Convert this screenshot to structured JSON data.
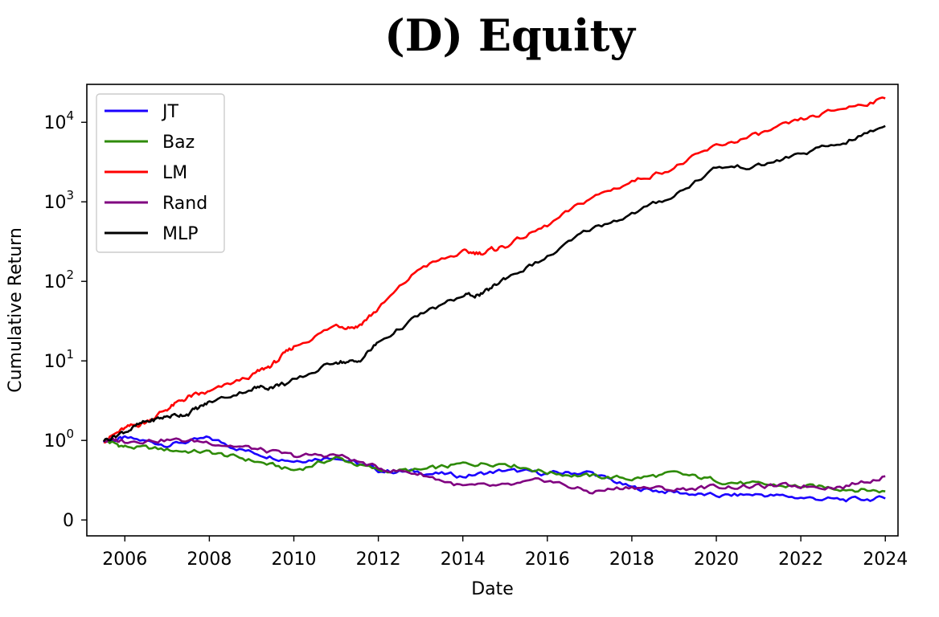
{
  "chart_data": {
    "type": "line",
    "title": "(D) Equity",
    "xlabel": "Date",
    "ylabel": "Cumulative Return",
    "yscale": "symlog",
    "xlim": [
      2005.1,
      2024.3
    ],
    "ylim": [
      -0.2,
      30000
    ],
    "x_ticks": [
      "2006",
      "2008",
      "2010",
      "2012",
      "2014",
      "2016",
      "2018",
      "2020",
      "2022",
      "2024"
    ],
    "y_ticks": [
      {
        "value": 0,
        "base": "0",
        "exp": ""
      },
      {
        "value": 1,
        "base": "10",
        "exp": "0"
      },
      {
        "value": 10,
        "base": "10",
        "exp": "1"
      },
      {
        "value": 100,
        "base": "10",
        "exp": "2"
      },
      {
        "value": 1000,
        "base": "10",
        "exp": "3"
      },
      {
        "value": 10000,
        "base": "10",
        "exp": "4"
      }
    ],
    "legend_position": "upper-left",
    "grid": false,
    "series": [
      {
        "name": "JT",
        "color": "#1a00ff",
        "x": [
          2005.5,
          2006,
          2007,
          2008,
          2009,
          2010,
          2011,
          2012,
          2013,
          2014,
          2015,
          2016,
          2017,
          2018,
          2019,
          2020,
          2021,
          2022,
          2023,
          2024
        ],
        "y": [
          1.0,
          1.05,
          0.95,
          1.05,
          0.85,
          0.75,
          0.8,
          0.62,
          0.6,
          0.55,
          0.62,
          0.58,
          0.6,
          0.4,
          0.35,
          0.3,
          0.32,
          0.28,
          0.25,
          0.27
        ]
      },
      {
        "name": "Baz",
        "color": "#2e8b07",
        "x": [
          2005.5,
          2006,
          2007,
          2008,
          2009,
          2010,
          2011,
          2012,
          2013,
          2014,
          2015,
          2016,
          2017,
          2018,
          2019,
          2020,
          2021,
          2022,
          2023,
          2024
        ],
        "y": [
          1.0,
          0.92,
          0.88,
          0.85,
          0.75,
          0.62,
          0.78,
          0.62,
          0.62,
          0.7,
          0.72,
          0.6,
          0.55,
          0.52,
          0.58,
          0.5,
          0.44,
          0.42,
          0.4,
          0.36
        ]
      },
      {
        "name": "LM",
        "color": "#ff0000",
        "x": [
          2005.5,
          2006,
          2006.5,
          2007,
          2007.5,
          2008,
          2009,
          2009.5,
          2010,
          2011,
          2011.5,
          2012,
          2013,
          2014,
          2014.5,
          2015,
          2016,
          2017,
          2018,
          2019,
          2020,
          2021,
          2022,
          2023,
          2024
        ],
        "y": [
          1.0,
          1.4,
          1.7,
          2.5,
          3.5,
          4.0,
          6.5,
          9.0,
          15,
          28,
          27,
          45,
          150,
          230,
          230,
          280,
          500,
          1100,
          1800,
          2700,
          5000,
          7000,
          10500,
          15000,
          20000
        ]
      },
      {
        "name": "Rand",
        "color": "#800080",
        "x": [
          2005.5,
          2006,
          2007,
          2008,
          2009,
          2010,
          2011,
          2012,
          2013,
          2014,
          2015,
          2016,
          2017,
          2018,
          2019,
          2020,
          2021,
          2022,
          2023,
          2024
        ],
        "y": [
          1.0,
          1.0,
          1.02,
          0.98,
          0.9,
          0.8,
          0.82,
          0.65,
          0.58,
          0.42,
          0.42,
          0.5,
          0.35,
          0.42,
          0.38,
          0.42,
          0.42,
          0.43,
          0.42,
          0.55
        ]
      },
      {
        "name": "MLP",
        "color": "#000000",
        "x": [
          2005.5,
          2006,
          2006.5,
          2007,
          2007.5,
          2008,
          2009,
          2009.5,
          2010,
          2011,
          2011.5,
          2012,
          2013,
          2014,
          2014.5,
          2015,
          2016,
          2017,
          2018,
          2019,
          2020,
          2021,
          2022,
          2023,
          2024
        ],
        "y": [
          1.0,
          1.3,
          1.7,
          2.0,
          2.2,
          3.0,
          4.5,
          4.8,
          5.5,
          10,
          9.5,
          17,
          38,
          65,
          70,
          110,
          200,
          450,
          700,
          1200,
          2700,
          2800,
          4000,
          5500,
          9000
        ]
      }
    ]
  }
}
